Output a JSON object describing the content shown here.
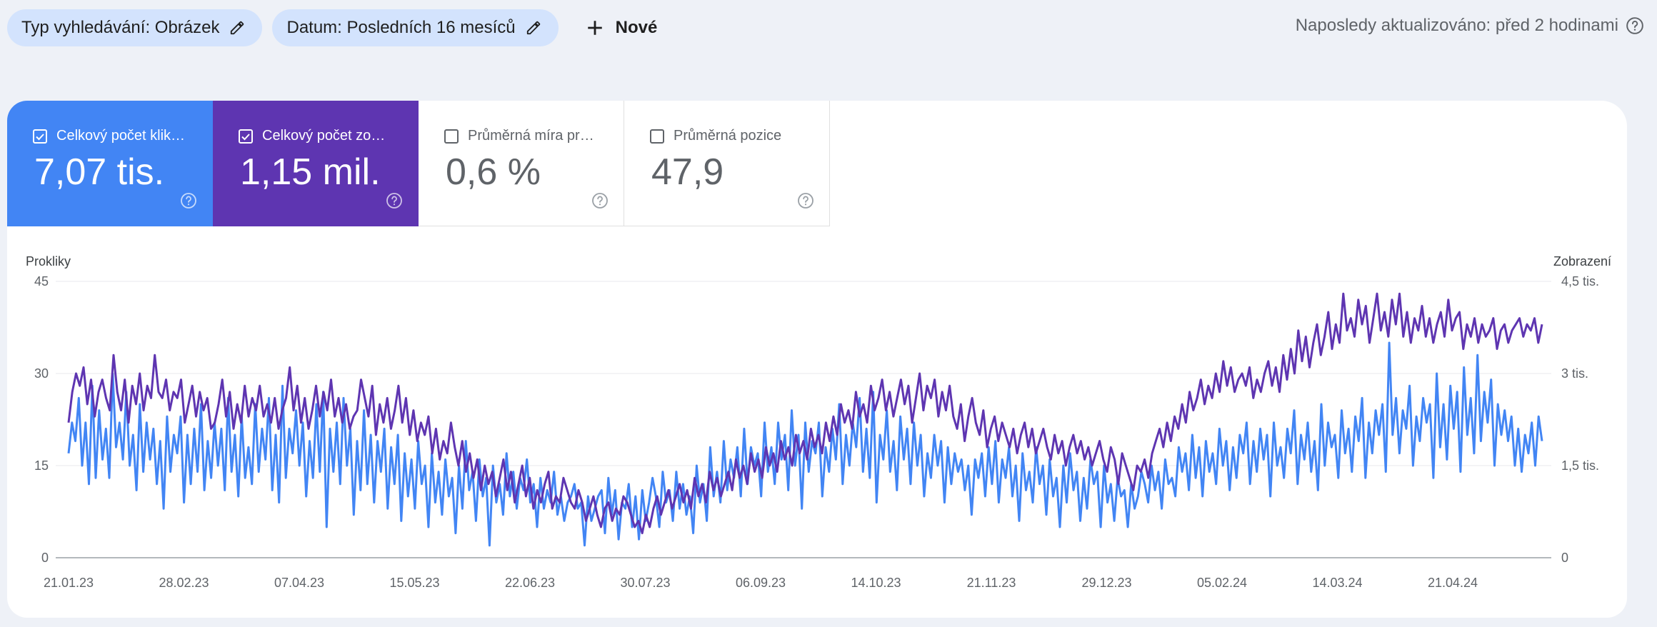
{
  "filters": [
    {
      "label": "Typ vyhledávání: Obrázek",
      "icon": "pencil-icon"
    },
    {
      "label": "Datum: Posledních 16 mesíců",
      "icon": "pencil-icon"
    }
  ],
  "new_button": {
    "label": "Nové",
    "icon": "plus-icon"
  },
  "last_updated": {
    "text": "Naposledy aktualizováno: před 2 hodinami",
    "icon": "help-icon"
  },
  "metrics": [
    {
      "label": "Celkový počet kliknutí",
      "display_label": "Celkový počet klik…",
      "value": "7,07 tis.",
      "checked": true,
      "color": "#4285f4"
    },
    {
      "label": "Celkový počet zobrazení",
      "display_label": "Celkový počet zo…",
      "value": "1,15 mil.",
      "checked": true,
      "color": "#5e35b1"
    },
    {
      "label": "Průměrná míra prokliku",
      "display_label": "Průměrná míra pr…",
      "value": "0,6 %",
      "checked": false,
      "color": "#ffffff"
    },
    {
      "label": "Průměrná pozice",
      "display_label": "Průměrná pozice",
      "value": "47,9",
      "checked": false,
      "color": "#ffffff"
    }
  ],
  "chart_data": {
    "type": "line",
    "left_axis_title": "Prokliky",
    "right_axis_title": "Zobrazení",
    "left_ticks": [
      "0",
      "15",
      "30",
      "45"
    ],
    "right_ticks": [
      "0",
      "1,5 tis.",
      "3 tis.",
      "4,5 tis."
    ],
    "ylim_left": [
      0,
      45
    ],
    "ylim_right": [
      0,
      4500
    ],
    "x_labels": [
      "21.01.23",
      "28.02.23",
      "07.04.23",
      "15.05.23",
      "22.06.23",
      "30.07.23",
      "06.09.23",
      "14.10.23",
      "21.11.23",
      "29.12.23",
      "05.02.24",
      "14.03.24",
      "21.04.24"
    ],
    "grid": true,
    "series": [
      {
        "name": "Celkový počet kliknutí",
        "axis": "left",
        "color": "#4285f4",
        "values": [
          17,
          22,
          19,
          26,
          15,
          22,
          12,
          28,
          13,
          24,
          16,
          21,
          13,
          30,
          18,
          22,
          16,
          27,
          15,
          20,
          11,
          25,
          14,
          22,
          16,
          21,
          12,
          19,
          8,
          23,
          14,
          20,
          17,
          23,
          9,
          20,
          12,
          21,
          14,
          25,
          11,
          19,
          13,
          22,
          15,
          21,
          11,
          26,
          14,
          20,
          10,
          23,
          13,
          18,
          12,
          25,
          14,
          21,
          16,
          26,
          11,
          20,
          9,
          28,
          13,
          21,
          17,
          24,
          15,
          22,
          10,
          19,
          13,
          25,
          14,
          27,
          5,
          21,
          14,
          22,
          12,
          26,
          15,
          21,
          7,
          19,
          11,
          24,
          12,
          20,
          9,
          19,
          14,
          21,
          8,
          18,
          12,
          20,
          6,
          17,
          10,
          16,
          8,
          19,
          12,
          15,
          5,
          17,
          9,
          14,
          7,
          16,
          10,
          13,
          4,
          15,
          8,
          19,
          11,
          14,
          6,
          16,
          10,
          13,
          2,
          15,
          9,
          12,
          7,
          17,
          10,
          14,
          8,
          13,
          11,
          16,
          9,
          12,
          5,
          13,
          8,
          11,
          9,
          14,
          7,
          10,
          6,
          9,
          10,
          12,
          8,
          9,
          2,
          10,
          6,
          8,
          10,
          11,
          4,
          13,
          7,
          11,
          3,
          9,
          8,
          12,
          5,
          10,
          3,
          11,
          6,
          9,
          13,
          10,
          5,
          14,
          9,
          11,
          6,
          14,
          8,
          12,
          7,
          10,
          4,
          15,
          9,
          12,
          6,
          18,
          10,
          14,
          9,
          19,
          11,
          16,
          13,
          18,
          10,
          21,
          12,
          18,
          15,
          17,
          10,
          22,
          14,
          18,
          12,
          22,
          16,
          20,
          11,
          24,
          15,
          20,
          8,
          22,
          14,
          19,
          17,
          22,
          10,
          18,
          14,
          21,
          16,
          25,
          12,
          20,
          15,
          22,
          18,
          26,
          14,
          21,
          13,
          27,
          9,
          20,
          16,
          24,
          14,
          19,
          11,
          23,
          16,
          21,
          12,
          22,
          15,
          20,
          10,
          17,
          13,
          20,
          15,
          19,
          9,
          18,
          12,
          17,
          14,
          16,
          11,
          15,
          7,
          16,
          13,
          17,
          10,
          18,
          12,
          19,
          9,
          16,
          13,
          18,
          10,
          15,
          6,
          17,
          11,
          14,
          9,
          18,
          12,
          15,
          7,
          16,
          10,
          13,
          5,
          15,
          9,
          17,
          11,
          14,
          6,
          13,
          8,
          16,
          12,
          14,
          5,
          15,
          9,
          12,
          6,
          13,
          10,
          11,
          5,
          12,
          8,
          10,
          14,
          12,
          9,
          15,
          11,
          14,
          8,
          16,
          12,
          13,
          10,
          18,
          14,
          17,
          11,
          20,
          13,
          18,
          10,
          19,
          14,
          17,
          12,
          21,
          15,
          19,
          11,
          18,
          13,
          20,
          17,
          22,
          12,
          19,
          14,
          21,
          16,
          20,
          10,
          22,
          15,
          18,
          13,
          21,
          17,
          24,
          12,
          20,
          16,
          22,
          14,
          19,
          11,
          25,
          15,
          22,
          18,
          20,
          13,
          24,
          17,
          21,
          14,
          23,
          19,
          26,
          13,
          22,
          17,
          24,
          20,
          25,
          14,
          35,
          20,
          26,
          17,
          24,
          21,
          28,
          15,
          23,
          19,
          26,
          22,
          25,
          13,
          30,
          18,
          25,
          16,
          28,
          21,
          27,
          14,
          31,
          20,
          26,
          17,
          33,
          19,
          27,
          22,
          29,
          15,
          25,
          20,
          24,
          19,
          23,
          15,
          21,
          14,
          20,
          17,
          22,
          15,
          23,
          19
        ]
      },
      {
        "name": "Celkový počet zobrazení",
        "axis": "right",
        "color": "#5e35b1",
        "values": [
          2200,
          2700,
          3000,
          2800,
          3100,
          2500,
          2900,
          2300,
          2700,
          2900,
          2600,
          2400,
          3300,
          2700,
          2400,
          2900,
          2200,
          2800,
          2500,
          3000,
          2400,
          2800,
          2600,
          3300,
          2700,
          2600,
          2900,
          2400,
          2700,
          2600,
          2900,
          2200,
          2500,
          2800,
          2300,
          2700,
          2400,
          2600,
          2100,
          2200,
          2500,
          2900,
          2300,
          2700,
          2100,
          2500,
          2200,
          2800,
          2300,
          2600,
          2400,
          2800,
          2300,
          2500,
          2200,
          2600,
          2100,
          2400,
          2600,
          3100,
          2400,
          2800,
          2200,
          2600,
          2100,
          2400,
          2800,
          2300,
          2700,
          2400,
          2900,
          2300,
          2600,
          2200,
          2500,
          2100,
          2300,
          2400,
          2900,
          2600,
          2300,
          2800,
          2000,
          2500,
          2200,
          2600,
          2100,
          2400,
          2800,
          2200,
          2600,
          2000,
          2400,
          1900,
          2200,
          2000,
          2300,
          1700,
          2100,
          1600,
          1900,
          1700,
          2200,
          1800,
          1500,
          1900,
          1400,
          1700,
          1300,
          1600,
          1100,
          1500,
          1200,
          1400,
          1000,
          1300,
          1600,
          1100,
          1400,
          900,
          1200,
          1500,
          1000,
          1300,
          800,
          1100,
          900,
          1200,
          1400,
          800,
          1000,
          900,
          1300,
          1100,
          900,
          800,
          1100,
          900,
          600,
          800,
          1000,
          700,
          500,
          800,
          900,
          600,
          800,
          700,
          1000,
          900,
          700,
          500,
          600,
          400,
          700,
          500,
          800,
          1000,
          700,
          900,
          1100,
          800,
          1000,
          1200,
          900,
          1100,
          800,
          1300,
          1000,
          1200,
          900,
          1400,
          1100,
          1300,
          1000,
          1200,
          1400,
          1100,
          1600,
          1300,
          1500,
          1200,
          1700,
          1400,
          1600,
          1300,
          1800,
          1500,
          1700,
          1400,
          1900,
          1600,
          1800,
          1500,
          2000,
          1700,
          1900,
          1600,
          2100,
          1800,
          2000,
          1700,
          2200,
          1900,
          2300,
          2000,
          2500,
          2200,
          2400,
          2100,
          2700,
          2300,
          2500,
          2200,
          2800,
          2400,
          2600,
          2900,
          2400,
          2700,
          2300,
          2600,
          2900,
          2500,
          2800,
          2200,
          2600,
          3000,
          2400,
          2800,
          2600,
          2900,
          2300,
          2700,
          2400,
          2800,
          2300,
          2100,
          2500,
          1900,
          2300,
          2600,
          2200,
          2000,
          2400,
          1800,
          2100,
          2300,
          1900,
          2200,
          2000,
          1800,
          2100,
          1700,
          2000,
          2200,
          1800,
          2100,
          1700,
          1900,
          2100,
          1800,
          1600,
          2000,
          1700,
          1900,
          1500,
          1800,
          2000,
          1700,
          1900,
          1600,
          1800,
          1500,
          1700,
          1900,
          1600,
          1400,
          1800,
          1600,
          1200,
          1700,
          1500,
          1300,
          1100,
          1500,
          1400,
          1600,
          1300,
          1700,
          1900,
          2100,
          1800,
          2200,
          1900,
          2300,
          2100,
          2500,
          2200,
          2700,
          2400,
          2600,
          2900,
          2500,
          2800,
          2600,
          3000,
          2700,
          3200,
          2800,
          3100,
          2700,
          2900,
          3000,
          2800,
          3100,
          2600,
          2900,
          2700,
          3000,
          3200,
          2800,
          3100,
          2700,
          3300,
          2900,
          3400,
          3000,
          3700,
          3200,
          3600,
          3100,
          3500,
          3800,
          3300,
          3600,
          4000,
          3400,
          3800,
          3500,
          4300,
          3700,
          3900,
          3600,
          4200,
          3800,
          4100,
          3500,
          3900,
          4300,
          3700,
          4000,
          3600,
          4200,
          3800,
          4300,
          3600,
          4000,
          3500,
          3900,
          3700,
          4100,
          3600,
          3900,
          3500,
          3800,
          4000,
          3600,
          4200,
          3700,
          3900,
          4000,
          3400,
          3800,
          3600,
          3900,
          3500,
          3800,
          3600,
          3700,
          3900,
          3400,
          3700,
          3800,
          3500,
          3700,
          3800,
          3900,
          3600,
          3800,
          3700,
          3900,
          3500,
          3800
        ]
      }
    ]
  }
}
